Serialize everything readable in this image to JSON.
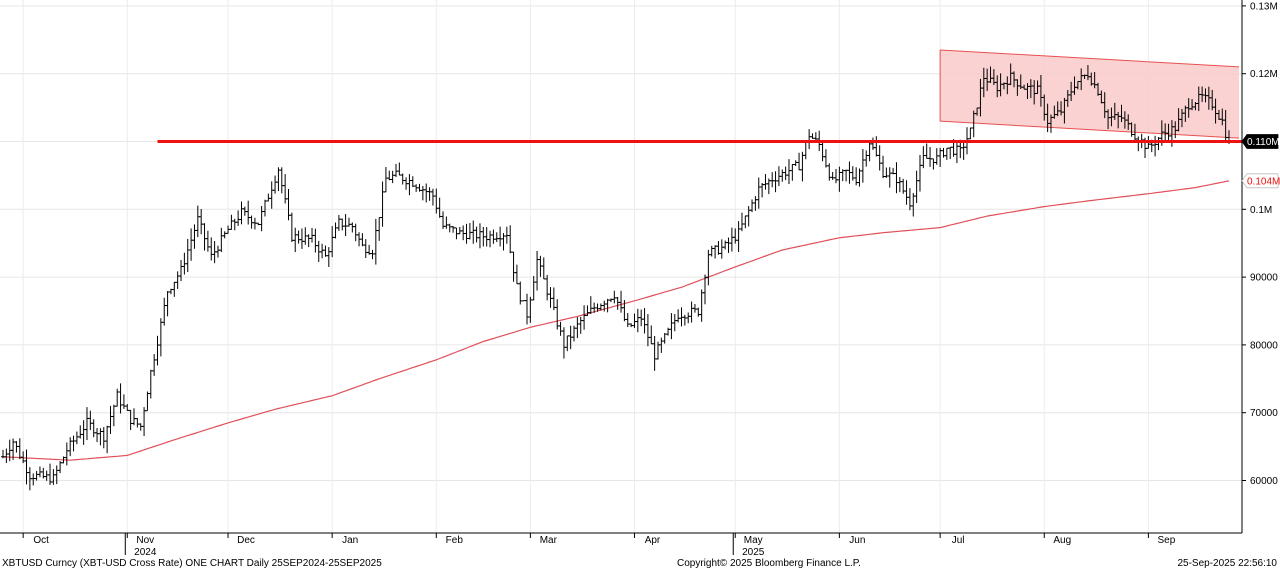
{
  "chart_data": {
    "type": "ohlc",
    "title": "",
    "xlabel": "",
    "ylabel": "",
    "x_range": [
      "2024-09-25",
      "2025-09-25"
    ],
    "ylim": [
      55000,
      131000
    ],
    "y_ticks": [
      60000,
      70000,
      80000,
      90000,
      100000,
      110000,
      120000,
      130000
    ],
    "y_tick_labels": [
      "60000",
      "70000",
      "80000",
      "90000",
      "0.1M",
      "0.110M",
      "0.12M",
      "0.13M"
    ],
    "x_ticks": [
      {
        "date": "2024-10-01",
        "label": "Oct"
      },
      {
        "date": "2024-11-01",
        "label": "Nov"
      },
      {
        "date": "2024-12-01",
        "label": "Dec"
      },
      {
        "date": "2025-01-01",
        "label": "Jan"
      },
      {
        "date": "2025-02-01",
        "label": "Feb"
      },
      {
        "date": "2025-03-01",
        "label": "Mar"
      },
      {
        "date": "2025-04-01",
        "label": "Apr"
      },
      {
        "date": "2025-05-01",
        "label": "May"
      },
      {
        "date": "2025-06-01",
        "label": "Jun"
      },
      {
        "date": "2025-07-01",
        "label": "Jul"
      },
      {
        "date": "2025-08-01",
        "label": "Aug"
      },
      {
        "date": "2025-09-01",
        "label": "Sep"
      }
    ],
    "year_labels": [
      {
        "date": "2024-11-01",
        "label": "2024"
      },
      {
        "date": "2025-05-01",
        "label": "2025"
      }
    ],
    "series": [
      {
        "kind": "price_bars",
        "color": "#000000",
        "keypoints": [
          [
            "2024-09-25",
            63500
          ],
          [
            "2024-09-28",
            65800
          ],
          [
            "2024-10-03",
            60800
          ],
          [
            "2024-10-10",
            60300
          ],
          [
            "2024-10-14",
            64500
          ],
          [
            "2024-10-20",
            68500
          ],
          [
            "2024-10-25",
            66500
          ],
          [
            "2024-10-29",
            72500
          ],
          [
            "2024-11-02",
            69000
          ],
          [
            "2024-11-05",
            68000
          ],
          [
            "2024-11-08",
            76000
          ],
          [
            "2024-11-11",
            83000
          ],
          [
            "2024-11-13",
            88000
          ],
          [
            "2024-11-17",
            91000
          ],
          [
            "2024-11-22",
            98500
          ],
          [
            "2024-11-26",
            93000
          ],
          [
            "2024-12-01",
            97000
          ],
          [
            "2024-12-05",
            99500
          ],
          [
            "2024-12-10",
            98000
          ],
          [
            "2024-12-16",
            106000
          ],
          [
            "2024-12-20",
            96000
          ],
          [
            "2024-12-26",
            95500
          ],
          [
            "2024-12-30",
            93000
          ],
          [
            "2025-01-03",
            98000
          ],
          [
            "2025-01-07",
            97500
          ],
          [
            "2025-01-10",
            94500
          ],
          [
            "2025-01-13",
            94000
          ],
          [
            "2025-01-17",
            104500
          ],
          [
            "2025-01-20",
            105000
          ],
          [
            "2025-01-25",
            104000
          ],
          [
            "2025-01-31",
            102000
          ],
          [
            "2025-02-03",
            97500
          ],
          [
            "2025-02-08",
            96500
          ],
          [
            "2025-02-16",
            96000
          ],
          [
            "2025-02-22",
            96500
          ],
          [
            "2025-02-25",
            88500
          ],
          [
            "2025-02-28",
            84500
          ],
          [
            "2025-03-03",
            92500
          ],
          [
            "2025-03-07",
            86500
          ],
          [
            "2025-03-11",
            80000
          ],
          [
            "2025-03-16",
            83500
          ],
          [
            "2025-03-20",
            85500
          ],
          [
            "2025-03-26",
            87500
          ],
          [
            "2025-03-30",
            82500
          ],
          [
            "2025-04-03",
            84000
          ],
          [
            "2025-04-07",
            78500
          ],
          [
            "2025-04-10",
            81000
          ],
          [
            "2025-04-14",
            84500
          ],
          [
            "2025-04-20",
            85000
          ],
          [
            "2025-04-23",
            93500
          ],
          [
            "2025-04-28",
            94500
          ],
          [
            "2025-05-02",
            96500
          ],
          [
            "2025-05-08",
            103000
          ],
          [
            "2025-05-12",
            104500
          ],
          [
            "2025-05-20",
            106500
          ],
          [
            "2025-05-23",
            111000
          ],
          [
            "2025-05-26",
            109500
          ],
          [
            "2025-05-30",
            104000
          ],
          [
            "2025-06-03",
            105500
          ],
          [
            "2025-06-06",
            104500
          ],
          [
            "2025-06-10",
            110000
          ],
          [
            "2025-06-14",
            105500
          ],
          [
            "2025-06-18",
            104500
          ],
          [
            "2025-06-22",
            101000
          ],
          [
            "2025-06-26",
            107500
          ],
          [
            "2025-06-30",
            107500
          ],
          [
            "2025-07-03",
            109000
          ],
          [
            "2025-07-07",
            108500
          ],
          [
            "2025-07-10",
            111500
          ],
          [
            "2025-07-14",
            119500
          ],
          [
            "2025-07-18",
            118000
          ],
          [
            "2025-07-22",
            119500
          ],
          [
            "2025-07-26",
            118000
          ],
          [
            "2025-07-30",
            117500
          ],
          [
            "2025-08-02",
            113000
          ],
          [
            "2025-08-06",
            114500
          ],
          [
            "2025-08-10",
            118500
          ],
          [
            "2025-08-14",
            120000
          ],
          [
            "2025-08-17",
            117500
          ],
          [
            "2025-08-20",
            113500
          ],
          [
            "2025-08-24",
            113500
          ],
          [
            "2025-08-28",
            111000
          ],
          [
            "2025-09-01",
            109000
          ],
          [
            "2025-09-05",
            111000
          ],
          [
            "2025-09-09",
            112000
          ],
          [
            "2025-09-13",
            115500
          ],
          [
            "2025-09-17",
            116500
          ],
          [
            "2025-09-20",
            115500
          ],
          [
            "2025-09-23",
            113000
          ],
          [
            "2025-09-25",
            109500
          ]
        ]
      },
      {
        "kind": "moving_average",
        "color": "#e0505a",
        "keypoints": [
          [
            "2024-09-25",
            63500
          ],
          [
            "2024-10-15",
            63000
          ],
          [
            "2024-11-01",
            63700
          ],
          [
            "2024-11-15",
            66000
          ],
          [
            "2024-12-01",
            68500
          ],
          [
            "2024-12-15",
            70500
          ],
          [
            "2025-01-01",
            72500
          ],
          [
            "2025-01-15",
            75000
          ],
          [
            "2025-02-01",
            77800
          ],
          [
            "2025-02-15",
            80500
          ],
          [
            "2025-03-01",
            82600
          ],
          [
            "2025-03-15",
            84200
          ],
          [
            "2025-04-01",
            86500
          ],
          [
            "2025-04-15",
            88500
          ],
          [
            "2025-05-01",
            91500
          ],
          [
            "2025-05-15",
            94000
          ],
          [
            "2025-06-01",
            95800
          ],
          [
            "2025-06-15",
            96600
          ],
          [
            "2025-07-01",
            97300
          ],
          [
            "2025-07-15",
            99000
          ],
          [
            "2025-08-01",
            100400
          ],
          [
            "2025-08-15",
            101300
          ],
          [
            "2025-09-01",
            102300
          ],
          [
            "2025-09-15",
            103200
          ],
          [
            "2025-09-25",
            104200
          ]
        ]
      }
    ],
    "support_line": {
      "value": 110000,
      "from": "2024-11-10",
      "color": "#ee1111"
    },
    "channel": {
      "upper": [
        [
          "2025-07-01",
          123500
        ],
        [
          "2025-09-28",
          121000
        ]
      ],
      "lower": [
        [
          "2025-07-01",
          113000
        ],
        [
          "2025-09-28",
          110500
        ]
      ],
      "color": "#e85050",
      "fill": "#f9caca"
    },
    "value_tags": [
      {
        "value": 110000,
        "label": "0.110M",
        "bg": "#000000",
        "fg": "#ffffff"
      },
      {
        "value": 104200,
        "label": "0.104M",
        "bg": "#ffffff",
        "fg": "#ee1111"
      }
    ]
  },
  "footer": {
    "left": "XBTUSD Curncy (XBT-USD Cross Rate) ONE CHART  Daily 25SEP2024-25SEP2025",
    "center": "Copyright© 2025 Bloomberg Finance L.P.",
    "right": "25-Sep-2025 22:56:10"
  }
}
